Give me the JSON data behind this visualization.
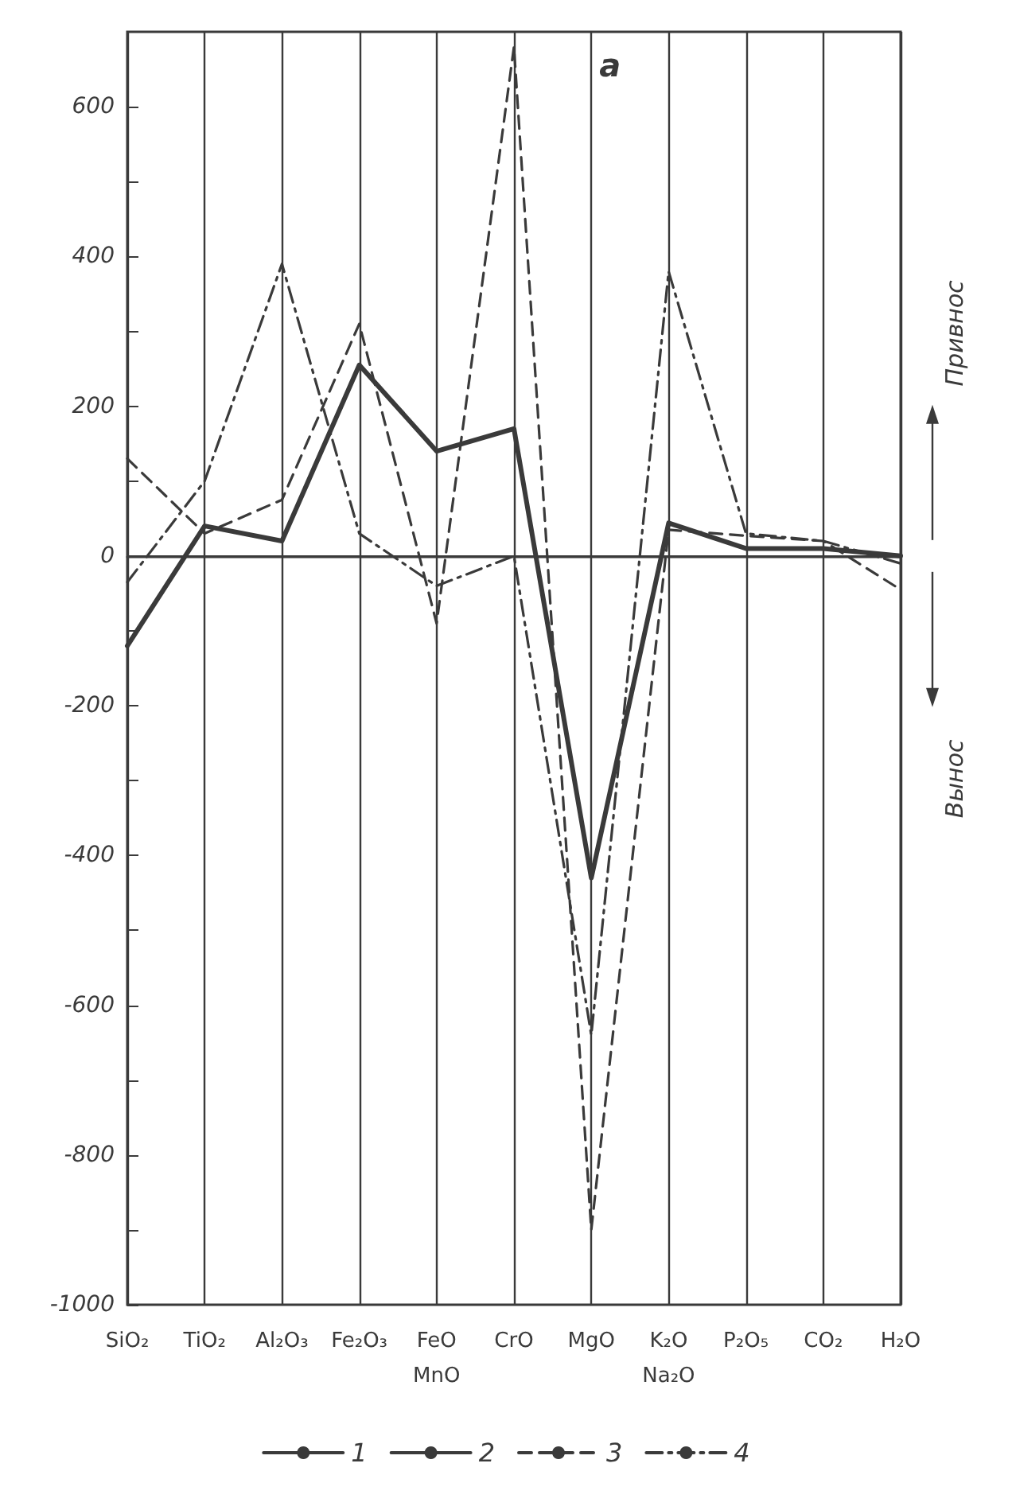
{
  "chart_data": {
    "type": "line",
    "title": "a",
    "categories": [
      "SiO₂",
      "TiO₂",
      "Al₂O₃",
      "Fe₂O₃",
      "FeO\nMnO",
      "CrO",
      "MgO",
      "K₂O\nNa₂O",
      "P₂O₅",
      "CO₂",
      "H₂O"
    ],
    "series": [
      {
        "name": "1",
        "color": "#3a3a3a",
        "line_style": "solid",
        "values": [
          null,
          null,
          null,
          null,
          null,
          null,
          null,
          null,
          null,
          null,
          null
        ]
      },
      {
        "name": "2",
        "color": "#3a3a3a",
        "line_style": "solid",
        "values": [
          -120,
          40,
          20,
          255,
          140,
          170,
          -430,
          44,
          10,
          10,
          0
        ]
      },
      {
        "name": "3",
        "color": "#3a3a3a",
        "line_style": "dashed",
        "values": [
          130,
          30,
          75,
          310,
          -90,
          680,
          -900,
          35,
          27,
          20,
          -45
        ]
      },
      {
        "name": "4",
        "color": "#3a3a3a",
        "line_style": "dashdot",
        "values": [
          -35,
          100,
          390,
          30,
          -40,
          0,
          -640,
          380,
          30,
          20,
          -10
        ]
      }
    ],
    "ylim": [
      -1000,
      700
    ],
    "yticks": [
      {
        "value": -1000,
        "label": "-1000"
      },
      {
        "value": -900,
        "label": null
      },
      {
        "value": -800,
        "label": "-800"
      },
      {
        "value": -700,
        "label": null
      },
      {
        "value": -600,
        "label": "-600"
      },
      {
        "value": -500,
        "label": null
      },
      {
        "value": -400,
        "label": "-400"
      },
      {
        "value": -300,
        "label": null
      },
      {
        "value": -200,
        "label": "-200"
      },
      {
        "value": -100,
        "label": null
      },
      {
        "value": 0,
        "label": "0"
      },
      {
        "value": 100,
        "label": null
      },
      {
        "value": 200,
        "label": "200"
      },
      {
        "value": 300,
        "label": null
      },
      {
        "value": 400,
        "label": "400"
      },
      {
        "value": 500,
        "label": null
      },
      {
        "value": 600,
        "label": "600"
      }
    ],
    "ref_lines": [
      {
        "axis": "y",
        "value": 0,
        "color": "#3a3a3a"
      }
    ],
    "annotations": [
      "Привнос",
      "Вынос"
    ],
    "grid": "x",
    "legend": "bottom",
    "marker": "none"
  }
}
